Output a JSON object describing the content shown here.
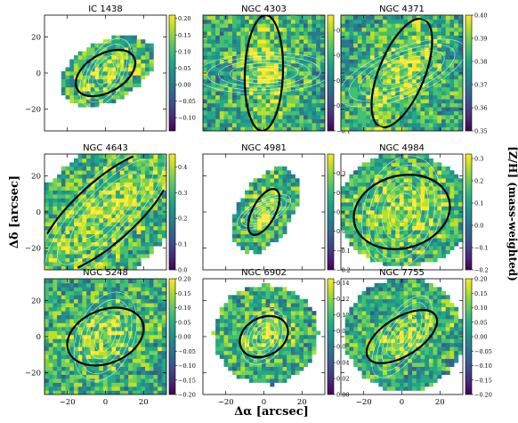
{
  "figure": {
    "shared_xlabel": "Δα [arcsec]",
    "shared_ylabel": "Δδ [arcsec]",
    "colorbar_label": "[Z/H] (mass-weighted)"
  },
  "chart_data": {
    "type": "heatmap",
    "xlabel": "Δα [arcsec]",
    "ylabel": "Δδ [arcsec]",
    "colorbar_label": "[Z/H] (mass-weighted)",
    "colormap": "viridis",
    "xticks": [
      -20,
      0,
      20
    ],
    "yticks": [
      -20,
      0,
      20
    ],
    "xlim": [
      -32,
      32
    ],
    "ylim": [
      -32,
      32
    ],
    "panels": [
      {
        "title": "IC 1438",
        "cbar_ticks": [
          "0.20",
          "0.15",
          "0.10",
          "0.05",
          "0.00",
          "−0.05",
          "−0.10"
        ],
        "vmin": -0.14,
        "vmax": 0.21,
        "ellipse": {
          "a": 18,
          "b": 10,
          "angle_deg": 30
        },
        "map_shape": "tilted-blob"
      },
      {
        "title": "NGC 4303",
        "cbar_ticks": [
          "0.3",
          "0.2",
          "0.1",
          "0.0",
          "−0.1"
        ],
        "vmin": -0.1,
        "vmax": 0.36,
        "ellipse": {
          "a": 32,
          "b": 10,
          "angle_deg": 88
        },
        "map_shape": "full"
      },
      {
        "title": "NGC 4371",
        "cbar_ticks": [
          "0.40",
          "0.39",
          "0.38",
          "0.37",
          "0.36",
          "0.35"
        ],
        "vmin": 0.35,
        "vmax": 0.4,
        "ellipse": {
          "a": 32,
          "b": 12,
          "angle_deg": 68
        },
        "map_shape": "full"
      },
      {
        "title": "NGC 4643",
        "cbar_ticks": [
          "0.4",
          "0.3",
          "0.2",
          "0.1",
          "0.0"
        ],
        "vmin": 0.0,
        "vmax": 0.45,
        "ellipse": {
          "a": 48,
          "b": 16,
          "angle_deg": 42
        },
        "map_shape": "full-diagonal"
      },
      {
        "title": "NGC 4981",
        "cbar_ticks": [
          "0.3",
          "0.2",
          "0.1",
          "0.0",
          "−0.1",
          "−0.2"
        ],
        "vmin": -0.2,
        "vmax": 0.4,
        "ellipse": {
          "a": 14,
          "b": 6,
          "angle_deg": 62
        },
        "map_shape": "spiral-narrow"
      },
      {
        "title": "NGC 4984",
        "cbar_ticks": [
          "0.3",
          "0.2",
          "0.1",
          "0.0",
          "−0.1",
          "−0.2"
        ],
        "vmin": -0.2,
        "vmax": 0.32,
        "ellipse": {
          "a": 27,
          "b": 19,
          "angle_deg": 15
        },
        "map_shape": "ellipse-large"
      },
      {
        "title": "NGC 5248",
        "cbar_ticks": [
          "0.20",
          "0.15",
          "0.10",
          "0.05",
          "0.00",
          "−0.05",
          "−0.10",
          "−0.15",
          "−0.20"
        ],
        "vmin": -0.2,
        "vmax": 0.2,
        "ellipse": {
          "a": 22,
          "b": 14,
          "angle_deg": 22
        },
        "map_shape": "full"
      },
      {
        "title": "NGC 6902",
        "cbar_ticks": [
          "0.14",
          "0.12",
          "0.10",
          "0.08",
          "0.06",
          "0.04",
          "0.02",
          "0.00"
        ],
        "vmin": 0.0,
        "vmax": 0.145,
        "ellipse": {
          "a": 14,
          "b": 10,
          "angle_deg": 28
        },
        "map_shape": "round"
      },
      {
        "title": "NGC 7755",
        "cbar_ticks": [
          "0.20",
          "0.15",
          "0.10",
          "0.05",
          "0.00",
          "−0.05",
          "−0.10",
          "−0.15",
          "−0.20"
        ],
        "vmin": -0.2,
        "vmax": 0.2,
        "ellipse": {
          "a": 22,
          "b": 10,
          "angle_deg": 32
        },
        "map_shape": "round-large"
      }
    ]
  }
}
